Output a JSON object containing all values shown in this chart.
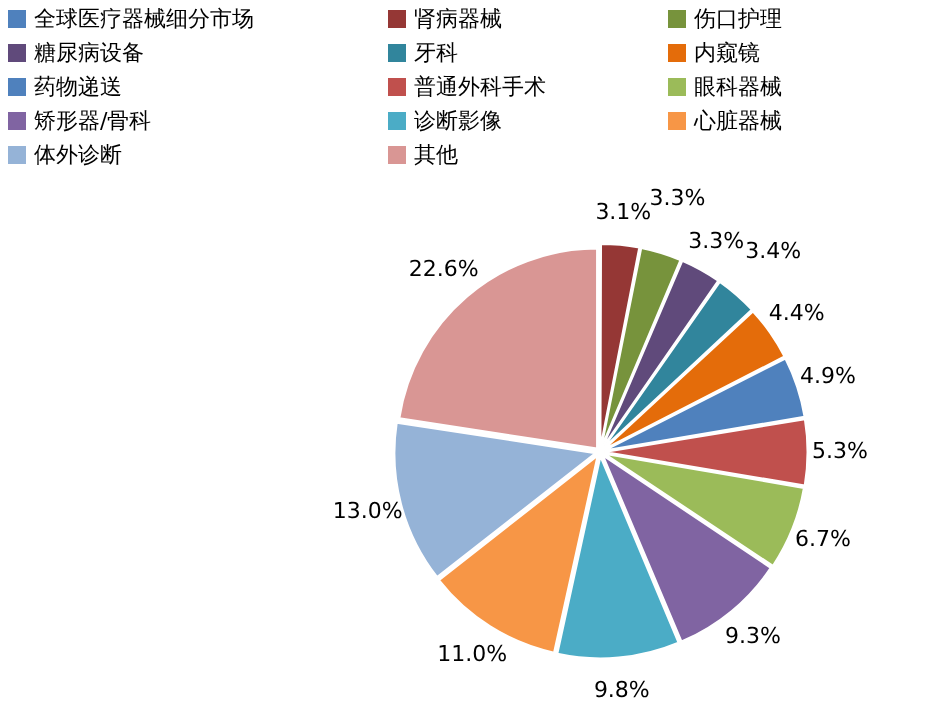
{
  "chart_data": {
    "type": "pie",
    "legend": "top",
    "categories": [
      "全球医疗器械细分市场",
      "肾病器械",
      "伤口护理",
      "糖尿病设备",
      "牙科",
      "内窥镜",
      "药物递送",
      "普通外科手术",
      "眼科器械",
      "矫形器/骨科",
      "诊断影像",
      "心脏器械",
      "体外诊断",
      "其他"
    ],
    "values": [
      0,
      3.1,
      3.3,
      3.3,
      3.4,
      4.4,
      4.9,
      5.3,
      6.7,
      9.3,
      9.8,
      11.0,
      13.0,
      22.6
    ],
    "value_labels": [
      null,
      "3.1%",
      "3.3%",
      "3.3%",
      "3.4%",
      "4.4%",
      "4.9%",
      "5.3%",
      "6.7%",
      "9.3%",
      "9.8%",
      "11.0%",
      "13.0%",
      "22.6%"
    ],
    "colors": [
      "#4f81bd",
      "#953735",
      "#77933c",
      "#604a7b",
      "#31859c",
      "#e46c0a",
      "#4f81bd",
      "#c0504d",
      "#9bbb59",
      "#8064a2",
      "#4bacc6",
      "#f79646",
      "#95b3d7",
      "#d99694"
    ]
  }
}
